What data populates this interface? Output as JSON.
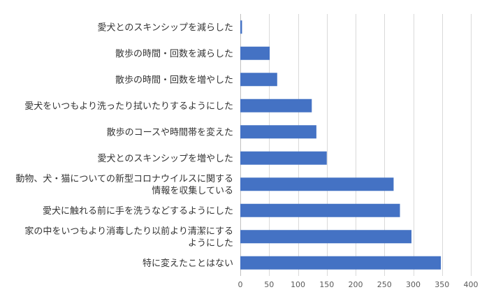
{
  "chart_data": {
    "type": "bar",
    "orientation": "horizontal",
    "title": "",
    "xlabel": "",
    "ylabel": "",
    "xlim": [
      0,
      400
    ],
    "xticks": [
      0,
      50,
      100,
      150,
      200,
      250,
      300,
      350,
      400
    ],
    "grid": true,
    "legend": "none",
    "bar_color": "#4472c4",
    "categories": [
      [
        "愛犬とのスキンシップを減らした"
      ],
      [
        "散歩の時間・回数を減らした"
      ],
      [
        "散歩の時間・回数を増やした"
      ],
      [
        "愛犬をいつもより洗ったり拭いたりするようにした"
      ],
      [
        "散歩のコースや時間帯を変えた"
      ],
      [
        "愛犬とのスキンシップを増やした"
      ],
      [
        "動物、犬・猫についての新型コロナウイルスに関する",
        "情報を収集している"
      ],
      [
        "愛犬に触れる前に手を洗うなどするようにした"
      ],
      [
        "家の中をいつもより消毒したり以前より清潔にする",
        "ようにした"
      ],
      [
        "特に変えたことはない"
      ]
    ],
    "values": [
      3,
      51,
      64,
      124,
      132,
      150,
      266,
      277,
      297,
      348
    ]
  }
}
